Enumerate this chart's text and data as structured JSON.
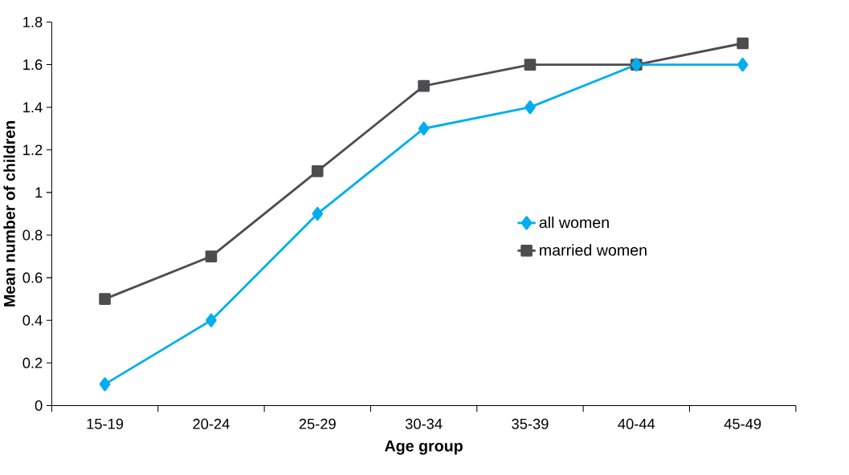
{
  "chart_data": {
    "type": "line",
    "xlabel": "Age group",
    "ylabel": "Mean number of children",
    "categories": [
      "15-19",
      "20-24",
      "25-29",
      "30-34",
      "35-39",
      "40-44",
      "45-49"
    ],
    "series": [
      {
        "name": "all women",
        "color": "#00aeef",
        "marker": "diamond",
        "values": [
          0.1,
          0.4,
          0.9,
          1.3,
          1.4,
          1.6,
          1.6
        ]
      },
      {
        "name": "married women",
        "color": "#4d4d4f",
        "marker": "square",
        "values": [
          0.5,
          0.7,
          1.1,
          1.5,
          1.6,
          1.6,
          1.7
        ]
      }
    ],
    "ylim": [
      0,
      1.8
    ],
    "yticks": [
      0,
      {
        "value": 0.2,
        "label": "0.2"
      },
      {
        "value": 0.4,
        "label": "0.4"
      },
      {
        "value": 0.6,
        "label": "0.6"
      },
      {
        "value": 0.8,
        "label": "0.8"
      },
      1,
      {
        "value": 1.2,
        "label": "1.2"
      },
      {
        "value": 1.4,
        "label": "1.4"
      },
      {
        "value": 1.6,
        "label": "1.6"
      },
      {
        "value": 1.8,
        "label": "1.8"
      }
    ],
    "legend": "right",
    "grid": false
  }
}
